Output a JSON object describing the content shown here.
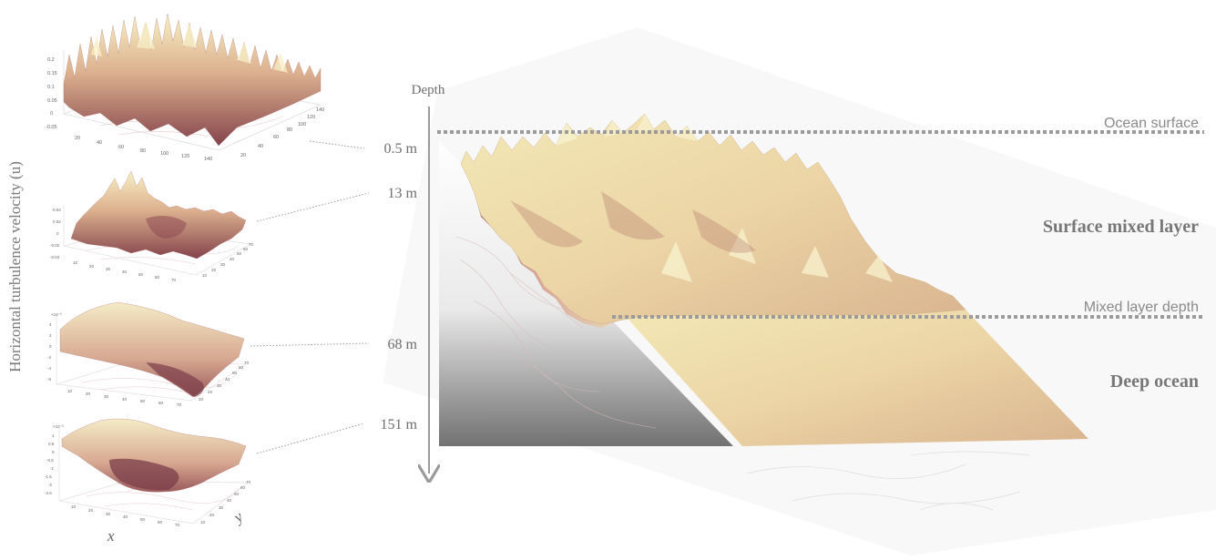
{
  "y_axis_label": "Horizontal turbulence velocity (u)",
  "depth_axis": {
    "title": "Depth",
    "ticks": [
      "0.5 m",
      "13 m",
      "68 m",
      "151 m"
    ]
  },
  "layers": {
    "ocean_surface": "Ocean surface",
    "surface_mixed_layer": "Surface mixed layer",
    "mixed_layer_depth": "Mixed layer depth",
    "deep_ocean": "Deep ocean"
  },
  "panels": [
    {
      "depth": "0.5 m",
      "z_ticks": [
        "0.2",
        "0.15",
        "0.1",
        "0.05",
        "0",
        "-0.05"
      ],
      "x_ticks": [
        "20",
        "40",
        "60",
        "80",
        "100",
        "120",
        "140"
      ],
      "y_ticks": [
        "20",
        "40",
        "60",
        "80",
        "100",
        "120",
        "140"
      ]
    },
    {
      "depth": "13 m",
      "z_ticks": [
        "0.04",
        "0.02",
        "0",
        "-0.02",
        "-0.04"
      ],
      "x_ticks": [
        "10",
        "20",
        "30",
        "40",
        "50",
        "60",
        "70"
      ],
      "y_ticks": [
        "10",
        "20",
        "30",
        "40",
        "50",
        "60",
        "70"
      ]
    },
    {
      "depth": "68 m",
      "z_exp": "×10⁻³",
      "z_ticks": [
        "4",
        "2",
        "0",
        "-2",
        "-4",
        "-6"
      ],
      "x_ticks": [
        "10",
        "20",
        "30",
        "40",
        "50",
        "60",
        "70"
      ],
      "y_ticks": [
        "10",
        "20",
        "30",
        "40",
        "50",
        "60",
        "70"
      ]
    },
    {
      "depth": "151 m",
      "z_exp": "×10⁻³",
      "z_ticks": [
        "1",
        "0.5",
        "0",
        "-0.5",
        "-1",
        "-1.5",
        "-2",
        "-2.5"
      ],
      "x_ticks": [
        "10",
        "20",
        "30",
        "40",
        "50",
        "60",
        "70"
      ],
      "y_ticks": [
        "10",
        "20",
        "30",
        "40",
        "50",
        "60",
        "70"
      ]
    }
  ],
  "axis_names": {
    "x": "x",
    "y": "y"
  },
  "colors": {
    "surface_light": "#f4ecbe",
    "surface_mid": "#d9a48e",
    "surface_dark": "#7a3d48",
    "deep_surface": "#ead7ad",
    "dotted_line": "#9b9b9b",
    "text": "#6e6e6e"
  }
}
